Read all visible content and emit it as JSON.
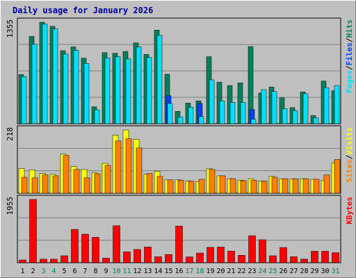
{
  "chart_data": {
    "type": "bar",
    "title": "Daily usage for January 2026",
    "x": [
      "1",
      "2",
      "3",
      "4",
      "5",
      "6",
      "7",
      "8",
      "9",
      "10",
      "11",
      "12",
      "13",
      "14",
      "15",
      "16",
      "17",
      "18",
      "19",
      "20",
      "21",
      "22",
      "23",
      "24",
      "25",
      "26",
      "27",
      "28",
      "29",
      "30",
      "31"
    ],
    "weekend_days": [
      "3",
      "4",
      "10",
      "11",
      "17",
      "18",
      "24",
      "25",
      "31"
    ],
    "panels": [
      {
        "name": "hits-files-pages",
        "max_label": "1355",
        "ylim": [
          0,
          1355
        ],
        "legend": [
          "Pages",
          "Files",
          "Hits"
        ],
        "series": [
          {
            "name": "Hits",
            "color": "#00805c",
            "values": [
              657,
              1165,
              1355,
              1300,
              975,
              1025,
              875,
              225,
              950,
              940,
              965,
              1080,
              925,
              1250,
              660,
              165,
              275,
              305,
              895,
              555,
              510,
              545,
              1030,
              410,
              490,
              345,
              215,
              425,
              110,
              570,
              440
            ]
          },
          {
            "name": "Files",
            "color": "#0040ff",
            "values": [
              0,
              0,
              0,
              0,
              0,
              0,
              0,
              0,
              0,
              0,
              0,
              0,
              0,
              0,
              375,
              0,
              0,
              270,
              0,
              0,
              0,
              0,
              190,
              0,
              0,
              0,
              0,
              0,
              0,
              0,
              0
            ]
          },
          {
            "name": "Pages",
            "color": "#00e0ff",
            "values": [
              630,
              1060,
              1330,
              1265,
              930,
              980,
              805,
              185,
              880,
              895,
              865,
              1025,
              885,
              1180,
              270,
              90,
              220,
              95,
              585,
              305,
              285,
              285,
              60,
              455,
              430,
              200,
              175,
              400,
              80,
              480,
              510
            ]
          }
        ],
        "blue_ticks": [
          0,
          0,
          0,
          0,
          0,
          0,
          0,
          0,
          0,
          0,
          0,
          0,
          0,
          0,
          0,
          0,
          0,
          0,
          0,
          0,
          0,
          0,
          0,
          0,
          0,
          0,
          0,
          0,
          0,
          0,
          0
        ]
      },
      {
        "name": "visits-sites",
        "max_label": "218",
        "ylim": [
          0,
          218
        ],
        "legend": [
          "Sites",
          "Visits"
        ],
        "series": [
          {
            "name": "Visits",
            "color": "#ffff00",
            "values": [
              85,
              80,
              68,
              65,
              135,
              92,
              82,
              70,
              103,
              200,
              218,
              186,
              65,
              76,
              46,
              46,
              42,
              40,
              84,
              60,
              50,
              45,
              50,
              42,
              58,
              50,
              50,
              50,
              48,
              45,
              105
            ]
          },
          {
            "name": "Sites",
            "color": "#ff8000",
            "values": [
              55,
              53,
              63,
              60,
              130,
              82,
              53,
              67,
              96,
              180,
              188,
              156,
              68,
              58,
              46,
              45,
              42,
              48,
              82,
              60,
              50,
              43,
              45,
              42,
              55,
              50,
              50,
              50,
              48,
              63,
              116
            ]
          }
        ]
      },
      {
        "name": "kbytes",
        "max_label": "1955",
        "ylim": [
          0,
          1955
        ],
        "legend": [
          "KBytes"
        ],
        "series": [
          {
            "name": "KBytes",
            "color": "#ff0000",
            "values": [
              85,
              1955,
              110,
              110,
              215,
              1030,
              880,
              785,
              140,
              1145,
              335,
              410,
              485,
              185,
              255,
              1130,
              180,
              300,
              475,
              485,
              360,
              230,
              835,
              710,
              215,
              470,
              185,
              110,
              355,
              355,
              310
            ]
          }
        ]
      }
    ],
    "colors": {
      "background": "#ffffff",
      "frame": "#c0c0c0",
      "plot_bg": "#bfbfbf",
      "gridline": "#808080",
      "title": "#0000a0",
      "weekday_label": "#000000",
      "weekend_label": "#00805c"
    }
  }
}
